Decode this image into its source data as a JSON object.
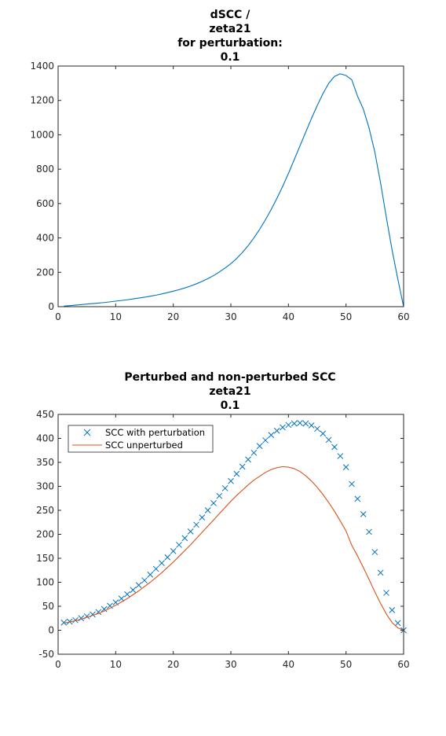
{
  "chart_data": [
    {
      "type": "line",
      "title": [
        "dSCC /",
        "zeta21",
        "for perturbation:",
        "0.1"
      ],
      "xlabel": "",
      "ylabel": "",
      "xlim": [
        0,
        60
      ],
      "ylim": [
        0,
        1400
      ],
      "xticks": [
        "0",
        "10",
        "20",
        "30",
        "40",
        "50",
        "60"
      ],
      "yticks": [
        "0",
        "200",
        "400",
        "600",
        "800",
        "1000",
        "1200",
        "1400"
      ],
      "grid": false,
      "series": [
        {
          "color": "#0072BD",
          "style": "line",
          "x": [
            1,
            2,
            3,
            4,
            5,
            6,
            7,
            8,
            9,
            10,
            11,
            12,
            13,
            14,
            15,
            16,
            17,
            18,
            19,
            20,
            21,
            22,
            23,
            24,
            25,
            26,
            27,
            28,
            29,
            30,
            31,
            32,
            33,
            34,
            35,
            36,
            37,
            38,
            39,
            40,
            41,
            42,
            43,
            44,
            45,
            46,
            47,
            48,
            49,
            50,
            51,
            52,
            53,
            54,
            55,
            56,
            57,
            58,
            59,
            60
          ],
          "y": [
            3,
            6,
            9,
            12,
            15,
            18,
            21,
            24,
            28,
            32,
            36,
            40,
            45,
            50,
            55,
            61,
            67,
            74,
            82,
            90,
            99,
            109,
            120,
            133,
            147,
            163,
            181,
            202,
            225,
            250,
            280,
            315,
            355,
            400,
            450,
            505,
            565,
            630,
            700,
            775,
            855,
            935,
            1015,
            1095,
            1170,
            1240,
            1300,
            1340,
            1355,
            1345,
            1320,
            1225,
            1150,
            1040,
            900,
            720,
            520,
            330,
            160,
            0
          ]
        }
      ]
    },
    {
      "type": "line",
      "title": [
        "Perturbed and non-perturbed SCC",
        "zeta21",
        "0.1"
      ],
      "xlabel": "",
      "ylabel": "",
      "xlim": [
        0,
        60
      ],
      "ylim": [
        -50,
        450
      ],
      "xticks": [
        "0",
        "10",
        "20",
        "30",
        "40",
        "50",
        "60"
      ],
      "yticks": [
        "-50",
        "0",
        "50",
        "100",
        "150",
        "200",
        "250",
        "300",
        "350",
        "400",
        "450"
      ],
      "grid": false,
      "legend": "top-left",
      "series": [
        {
          "name": "SCC with perturbation",
          "color": "#0072BD",
          "style": "marker-x",
          "x": [
            1,
            2,
            3,
            4,
            5,
            6,
            7,
            8,
            9,
            10,
            11,
            12,
            13,
            14,
            15,
            16,
            17,
            18,
            19,
            20,
            21,
            22,
            23,
            24,
            25,
            26,
            27,
            28,
            29,
            30,
            31,
            32,
            33,
            34,
            35,
            36,
            37,
            38,
            39,
            40,
            41,
            42,
            43,
            44,
            45,
            46,
            47,
            48,
            49,
            50,
            51,
            52,
            53,
            54,
            55,
            56,
            57,
            58,
            59,
            60
          ],
          "y": [
            16,
            18,
            21,
            25,
            29,
            33,
            38,
            44,
            51,
            58,
            66,
            75,
            84,
            94,
            104,
            116,
            128,
            140,
            152,
            165,
            178,
            192,
            206,
            220,
            235,
            250,
            265,
            280,
            296,
            311,
            326,
            341,
            356,
            370,
            384,
            396,
            407,
            416,
            423,
            428,
            431,
            432,
            431,
            427,
            420,
            410,
            397,
            382,
            363,
            340,
            305,
            274,
            242,
            205,
            163,
            120,
            78,
            42,
            15,
            0
          ]
        },
        {
          "name": "SCC unperturbed",
          "color": "#D95319",
          "style": "line",
          "x": [
            1,
            2,
            3,
            4,
            5,
            6,
            7,
            8,
            9,
            10,
            11,
            12,
            13,
            14,
            15,
            16,
            17,
            18,
            19,
            20,
            21,
            22,
            23,
            24,
            25,
            26,
            27,
            28,
            29,
            30,
            31,
            32,
            33,
            34,
            35,
            36,
            37,
            38,
            39,
            40,
            41,
            42,
            43,
            44,
            45,
            46,
            47,
            48,
            49,
            50,
            51,
            52,
            53,
            54,
            55,
            56,
            57,
            58,
            59,
            60
          ],
          "y": [
            15,
            17,
            20,
            23,
            27,
            31,
            35,
            40,
            46,
            52,
            59,
            66,
            74,
            82,
            91,
            100,
            110,
            120,
            131,
            142,
            154,
            166,
            178,
            191,
            204,
            217,
            230,
            243,
            256,
            269,
            281,
            292,
            303,
            313,
            321,
            329,
            335,
            339,
            341,
            340,
            337,
            331,
            322,
            311,
            298,
            283,
            266,
            248,
            228,
            207,
            177,
            155,
            131,
            106,
            80,
            56,
            34,
            16,
            5,
            0
          ]
        }
      ]
    }
  ]
}
